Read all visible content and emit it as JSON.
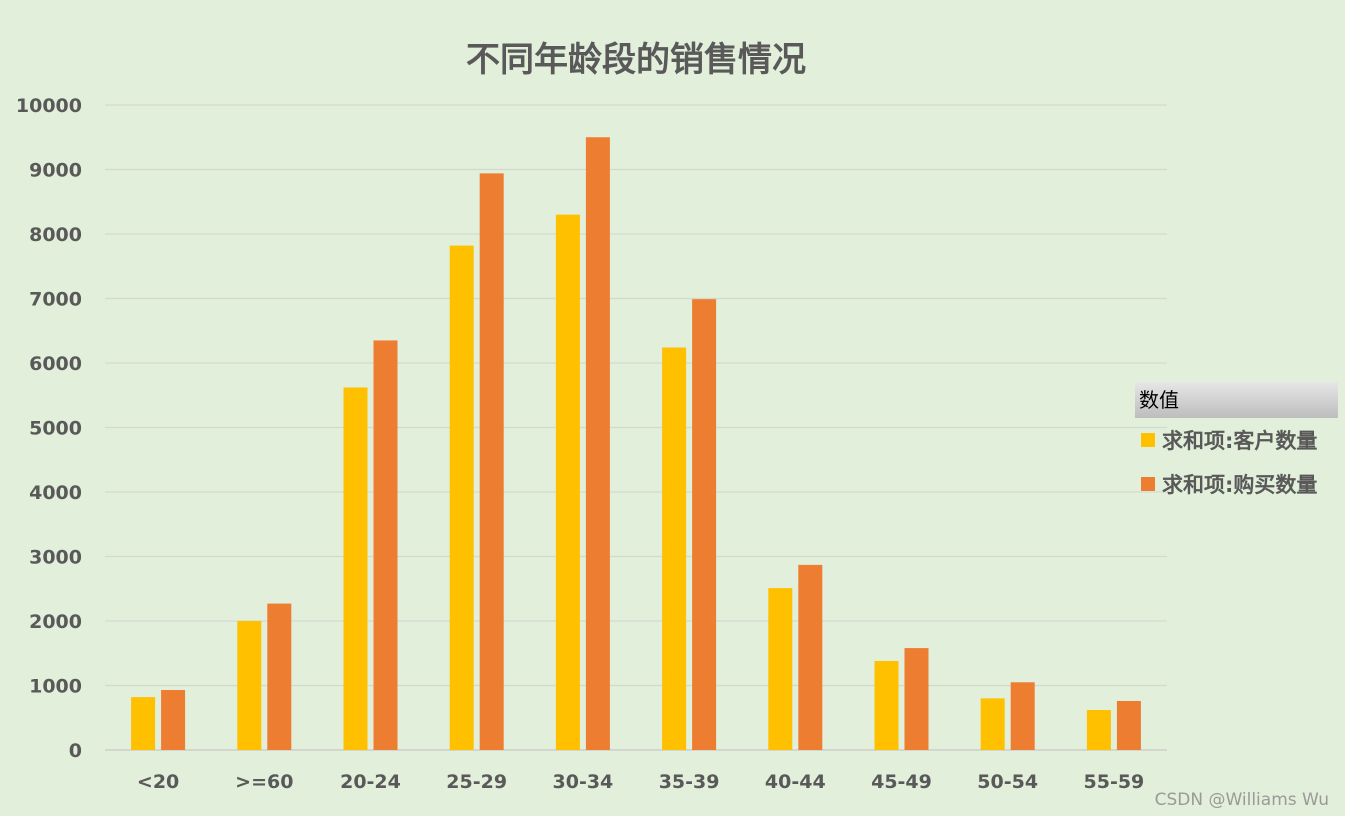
{
  "chart_data": {
    "type": "bar",
    "title": "不同年龄段的销售情况",
    "categories": [
      "<20",
      ">=60",
      "20-24",
      "25-29",
      "30-34",
      "35-39",
      "40-44",
      "45-49",
      "50-54",
      "55-59"
    ],
    "series": [
      {
        "name": "求和项:客户数量",
        "color": "#ffc000",
        "values": [
          820,
          2000,
          5620,
          7820,
          8300,
          6240,
          2510,
          1380,
          800,
          620
        ]
      },
      {
        "name": "求和项:购买数量",
        "color": "#ed7d31",
        "values": [
          930,
          2270,
          6350,
          8940,
          9500,
          6990,
          2870,
          1580,
          1050,
          760
        ]
      }
    ],
    "ylim": [
      0,
      10000
    ],
    "yticks": [
      0,
      1000,
      2000,
      3000,
      4000,
      5000,
      6000,
      7000,
      8000,
      9000,
      10000
    ],
    "grid": true,
    "legend_position": "right",
    "legend_title": "数值"
  },
  "watermark": "CSDN @Williams Wu"
}
